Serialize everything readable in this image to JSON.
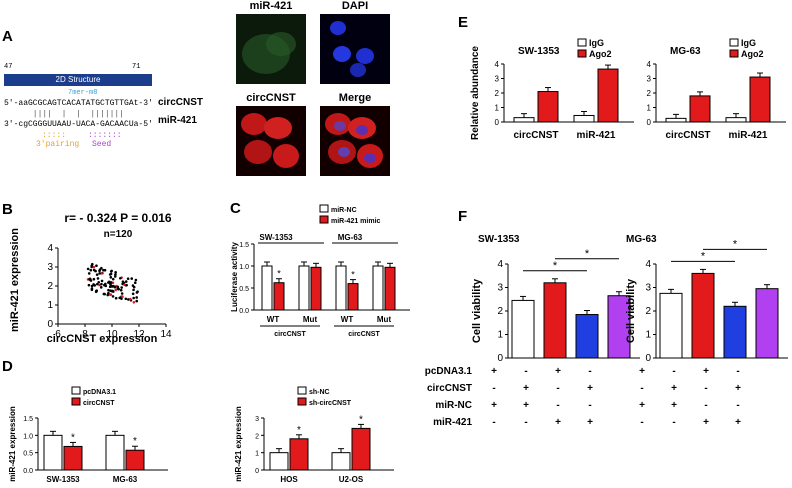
{
  "panels": {
    "A": "A",
    "B": "B",
    "C": "C",
    "D": "D",
    "E": "E",
    "F": "F"
  },
  "structure": {
    "title": "2D Structure",
    "start": "47",
    "end": "71",
    "mer_label": "7mer-m8",
    "line1": "5'-aaGCGCAGTCACATATGCTGTTGAt-3'",
    "line2": "3'-cgCGGGUUAAU-UACA-GACAACUa-5'",
    "name1": "circCNST",
    "name2": "miR-421",
    "pairing_label": "3'pairing",
    "seed_label": "Seed"
  },
  "micrographs": {
    "mir421": "miR-421",
    "dapi": "DAPI",
    "circcnst": "circCNST",
    "merge": "Merge"
  },
  "panel_b": {
    "stat": "r= - 0.324 P = 0.016",
    "n": "n=120",
    "xlabel": "circCNST expression",
    "ylabel": "miR-421 expression",
    "xticks": [
      "6",
      "8",
      "10",
      "12",
      "14"
    ],
    "yticks": [
      "0",
      "1",
      "2",
      "3",
      "4"
    ]
  },
  "chart_data": [
    {
      "id": "E1",
      "type": "bar",
      "title": "SW-1353",
      "categories": [
        "circCNST",
        "miR-421"
      ],
      "series": [
        {
          "name": "IgG",
          "values": [
            0.3,
            0.45
          ]
        },
        {
          "name": "Ago2",
          "values": [
            2.1,
            3.65
          ]
        }
      ],
      "ylabel": "Relative abundance",
      "ylim": [
        0,
        4
      ],
      "yticks": [
        "0",
        "1",
        "2",
        "3",
        "4"
      ],
      "colors": {
        "IgG": "#ffffff",
        "Ago2": "#e31a1c"
      }
    },
    {
      "id": "E2",
      "type": "bar",
      "title": "MG-63",
      "categories": [
        "circCNST",
        "miR-421"
      ],
      "series": [
        {
          "name": "IgG",
          "values": [
            0.25,
            0.3
          ]
        },
        {
          "name": "Ago2",
          "values": [
            1.8,
            3.1
          ]
        }
      ],
      "ylim": [
        0,
        4
      ],
      "yticks": [
        "0",
        "1",
        "2",
        "3",
        "4"
      ],
      "colors": {
        "IgG": "#ffffff",
        "Ago2": "#e31a1c"
      }
    },
    {
      "id": "C",
      "type": "bar",
      "groups": [
        "SW-1353",
        "MG-63"
      ],
      "categories": [
        "WT",
        "Mut",
        "WT",
        "Mut"
      ],
      "sublabel": "circCNST",
      "series": [
        {
          "name": "miR-NC",
          "values": [
            1.0,
            1.0,
            1.0,
            1.0
          ]
        },
        {
          "name": "miR-421 mimic",
          "values": [
            0.62,
            0.97,
            0.6,
            0.97
          ]
        }
      ],
      "ylabel": "Luciferase activity",
      "ylim": [
        0,
        1.5
      ],
      "yticks": [
        "0.0",
        "0.5",
        "1.0",
        "1.5"
      ],
      "stars": [
        "*",
        "*"
      ]
    },
    {
      "id": "D1",
      "type": "bar",
      "categories": [
        "SW-1353",
        "MG-63"
      ],
      "series": [
        {
          "name": "pcDNA3.1",
          "values": [
            1.0,
            1.0
          ]
        },
        {
          "name": "circCNST",
          "values": [
            0.68,
            0.57
          ]
        }
      ],
      "ylabel": "miR-421 expression",
      "ylim": [
        0,
        1.5
      ],
      "yticks": [
        "0.0",
        "0.5",
        "1.0",
        "1.5"
      ],
      "stars": [
        "*",
        "*"
      ]
    },
    {
      "id": "D2",
      "type": "bar",
      "categories": [
        "HOS",
        "U2-OS"
      ],
      "series": [
        {
          "name": "sh-NC",
          "values": [
            1.0,
            1.0
          ]
        },
        {
          "name": "sh-circCNST",
          "values": [
            1.8,
            2.4
          ]
        }
      ],
      "ylabel": "miR-421 expression",
      "ylim": [
        0,
        3
      ],
      "yticks": [
        "0",
        "1",
        "2",
        "3"
      ],
      "stars": [
        "*",
        "*"
      ]
    },
    {
      "id": "F1",
      "type": "bar",
      "title": "SW-1353",
      "values": [
        2.45,
        3.2,
        1.85,
        2.65
      ],
      "colors": [
        "#ffffff",
        "#e31a1c",
        "#1f3fe0",
        "#b040f0"
      ],
      "ylabel": "Cell viability",
      "ylim": [
        0,
        4
      ],
      "yticks": [
        "0",
        "1",
        "2",
        "3",
        "4"
      ],
      "stars": [
        "*",
        "*"
      ]
    },
    {
      "id": "F2",
      "type": "bar",
      "title": "MG-63",
      "values": [
        2.75,
        3.6,
        2.2,
        2.95
      ],
      "colors": [
        "#ffffff",
        "#e31a1c",
        "#1f3fe0",
        "#b040f0"
      ],
      "ylabel": "Cell viability",
      "ylim": [
        0,
        4
      ],
      "yticks": [
        "0",
        "1",
        "2",
        "3",
        "4"
      ],
      "stars": [
        "*",
        "*"
      ]
    }
  ],
  "panel_f_table": {
    "rows": [
      {
        "label": "pcDNA3.1",
        "signs": [
          "+",
          "-",
          "+",
          "-"
        ]
      },
      {
        "label": "circCNST",
        "signs": [
          "-",
          "+",
          "-",
          "+"
        ]
      },
      {
        "label": "miR-NC",
        "signs": [
          "+",
          "+",
          "-",
          "-"
        ]
      },
      {
        "label": "miR-421",
        "signs": [
          "-",
          "-",
          "+",
          "+"
        ]
      }
    ]
  }
}
